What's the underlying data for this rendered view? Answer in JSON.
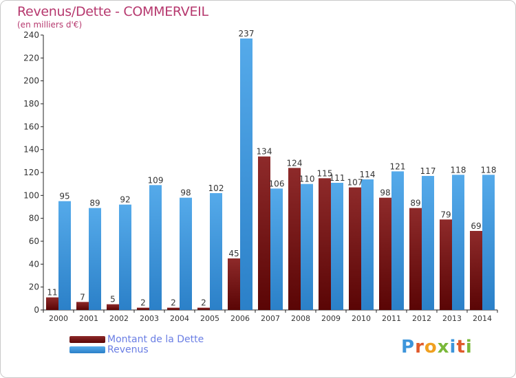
{
  "chart_data": {
    "type": "bar",
    "title": "Revenus/Dette - COMMERVEIL",
    "subtitle": "(en milliers d'€)",
    "categories": [
      "2000",
      "2001",
      "2002",
      "2003",
      "2004",
      "2005",
      "2006",
      "2007",
      "2008",
      "2009",
      "2010",
      "2011",
      "2012",
      "2013",
      "2014"
    ],
    "series": [
      {
        "name": "Montant de la Dette",
        "color": "#7a1414",
        "values": [
          11,
          7,
          5,
          2,
          2,
          2,
          45,
          134,
          124,
          115,
          107,
          98,
          89,
          79,
          69
        ]
      },
      {
        "name": "Revenus",
        "color": "#3d95db",
        "values": [
          95,
          89,
          92,
          109,
          98,
          102,
          237,
          106,
          110,
          111,
          114,
          121,
          117,
          118,
          118
        ]
      }
    ],
    "ylim": [
      0,
      240
    ],
    "yticks": [
      0,
      20,
      40,
      60,
      80,
      100,
      120,
      140,
      160,
      180,
      200,
      220,
      240
    ],
    "grid": false,
    "legend_position": "bottom-left"
  },
  "legend": {
    "items": [
      {
        "label": "Montant de la Dette",
        "color": "#6b0f0f"
      },
      {
        "label": "Revenus",
        "color": "#3d95db"
      }
    ]
  },
  "logo": {
    "text": "Proxiti"
  }
}
